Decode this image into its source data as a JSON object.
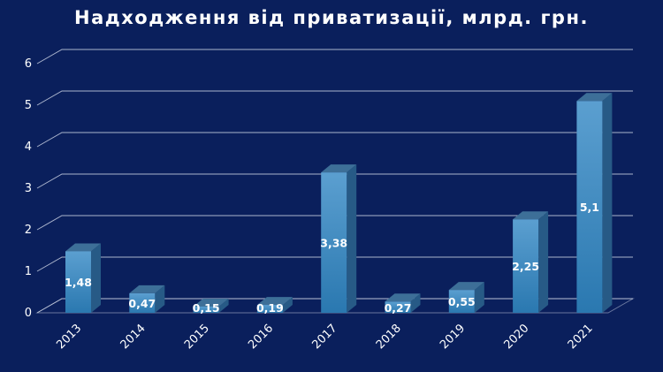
{
  "chart_data": {
    "type": "bar",
    "title": "Надходження від приватизації, млрд. грн.",
    "xlabel": "",
    "ylabel": "",
    "categories": [
      "2013",
      "2014",
      "2015",
      "2016",
      "2017",
      "2018",
      "2019",
      "2020",
      "2021"
    ],
    "values": [
      1.48,
      0.47,
      0.15,
      0.19,
      3.38,
      0.27,
      0.55,
      2.25,
      5.1
    ],
    "value_labels": [
      "1,48",
      "0,47",
      "0,15",
      "0,19",
      "3,38",
      "0,27",
      "0,55",
      "2,25",
      "5,1"
    ],
    "ylim": [
      0,
      6
    ],
    "yticks": [
      "0",
      "1",
      "2",
      "3",
      "4",
      "5",
      "6"
    ],
    "grid": true,
    "legend": "none",
    "colors": {
      "background": "#0a1f5c",
      "bar_front_top": "#5b9fd0",
      "bar_front_bottom": "#2a78b0",
      "bar_side": "#275a86",
      "bar_top": "#3d6f98",
      "grid": "#c8cfe0",
      "text": "#ffffff"
    }
  }
}
